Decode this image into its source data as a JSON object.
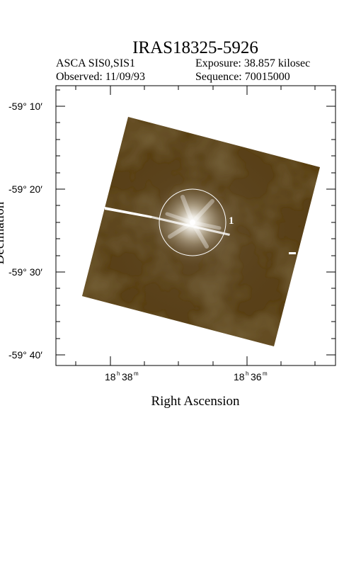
{
  "title": "IRAS18325-5926",
  "header": {
    "instrument": "ASCA SIS0,SIS1",
    "exposure": "Exposure: 38.857 kilosec",
    "observed": "Observed: 11/09/93",
    "sequence": "Sequence: 70015000"
  },
  "axes": {
    "xlabel": "Right Ascension",
    "ylabel": "Declination",
    "dec_ticks": [
      "-59° 10′",
      "-59° 20′",
      "-59° 30′",
      "-59° 40′"
    ],
    "ra_ticks": [
      {
        "hours": "18",
        "h": "h",
        "minutes": "38",
        "m": "m"
      },
      {
        "hours": "18",
        "h": "h",
        "minutes": "36",
        "m": "m"
      }
    ]
  },
  "source": {
    "label": "1"
  },
  "colors": {
    "image_base": "#5a4016",
    "source_core": "#ffffff",
    "circle": "#ffffff"
  }
}
